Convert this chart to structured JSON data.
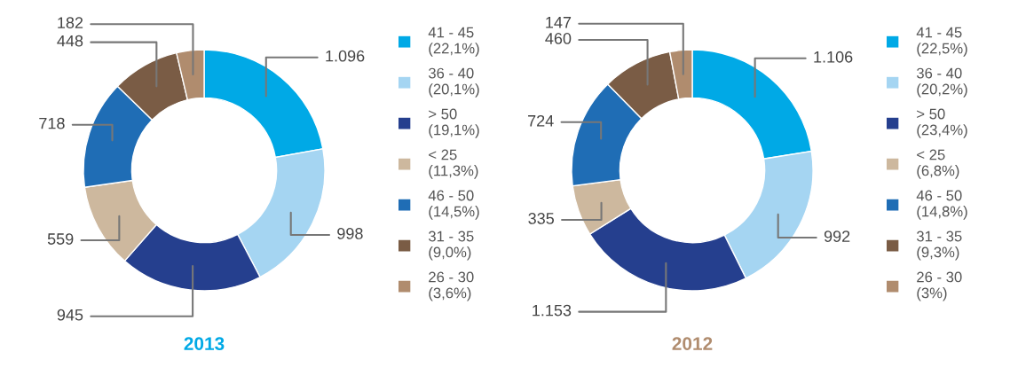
{
  "chart_data": [
    {
      "type": "donut",
      "title": "2013",
      "categories": [
        "41 - 45\n(22,1%)",
        "36 - 40\n(20,1%)",
        "> 50\n(19,1%)",
        "< 25\n(11,3%)",
        "46 - 50\n(14,5%)",
        "31 - 35\n(9,0%)",
        "26 - 30\n(3,6%)"
      ],
      "values": [
        1096,
        998,
        945,
        559,
        718,
        448,
        182
      ],
      "colors": [
        "#00a9e6",
        "#a5d5f2",
        "#253f8e",
        "#cdb89e",
        "#1f6db5",
        "#7a5c45",
        "#b08c6e"
      ],
      "value_labels": [
        "1.096",
        "998",
        "945",
        "559",
        "718",
        "448",
        "182"
      ],
      "legend": "right"
    },
    {
      "type": "donut",
      "title": "2012",
      "categories": [
        "41 - 45\n(22,5%)",
        "36 - 40\n(20,2%)",
        "> 50\n(23,4%)",
        "< 25\n(6,8%)",
        "46 - 50\n(14,8%)",
        "31 - 35\n(9,3%)",
        "26 - 30\n(3%)"
      ],
      "values": [
        1106,
        992,
        1153,
        335,
        724,
        460,
        147
      ],
      "colors": [
        "#00a9e6",
        "#a5d5f2",
        "#253f8e",
        "#cdb89e",
        "#1f6db5",
        "#7a5c45",
        "#b08c6e"
      ],
      "value_labels": [
        "1.106",
        "992",
        "1.153",
        "335",
        "724",
        "460",
        "147"
      ],
      "legend": "right"
    }
  ]
}
